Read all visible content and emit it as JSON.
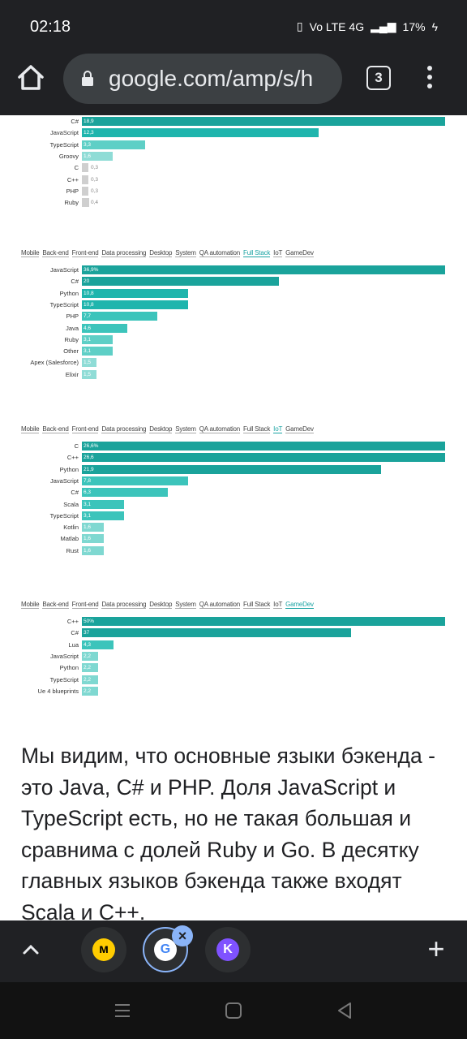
{
  "status": {
    "time": "02:18",
    "network": "Vo LTE 4G",
    "battery": "17%"
  },
  "browser": {
    "url": "google.com/amp/s/h",
    "tab_count": "3"
  },
  "charts": [
    {
      "filters": [],
      "active": "",
      "rows": [
        {
          "label": "C#",
          "value": "18,9",
          "v": 18.9,
          "color": "#1aa39b"
        },
        {
          "label": "JavaScript",
          "value": "12,3",
          "v": 12.3,
          "color": "#1fb5ad"
        },
        {
          "label": "TypeScript",
          "value": "3,3",
          "v": 3.3,
          "color": "#5ecfc6"
        },
        {
          "label": "Groovy",
          "value": "1,6",
          "v": 1.6,
          "color": "#8fdcd6"
        },
        {
          "label": "C",
          "value": "0,3",
          "v": 0.3,
          "color": "#cfcfcf"
        },
        {
          "label": "C++",
          "value": "0,3",
          "v": 0.3,
          "color": "#cfcfcf"
        },
        {
          "label": "PHP",
          "value": "0,3",
          "v": 0.3,
          "color": "#cfcfcf"
        },
        {
          "label": "Ruby",
          "value": "0,4",
          "v": 0.4,
          "color": "#cfcfcf"
        }
      ]
    },
    {
      "filters": [
        "Mobile",
        "Back-end",
        "Front-end",
        "Data processing",
        "Desktop",
        "System",
        "QA automation",
        "Full Stack",
        "IoT",
        "GameDev"
      ],
      "active": "Full Stack",
      "rows": [
        {
          "label": "JavaScript",
          "value": "36,9%",
          "v": 36.9,
          "color": "#1aa39b"
        },
        {
          "label": "C#",
          "value": "20",
          "v": 20,
          "color": "#1aa39b"
        },
        {
          "label": "Python",
          "value": "10,8",
          "v": 10.8,
          "color": "#1fb5ad"
        },
        {
          "label": "TypeScript",
          "value": "10,8",
          "v": 10.8,
          "color": "#1fb5ad"
        },
        {
          "label": "PHP",
          "value": "7,7",
          "v": 7.7,
          "color": "#3cc4bb"
        },
        {
          "label": "Java",
          "value": "4,6",
          "v": 4.6,
          "color": "#3cc4bb"
        },
        {
          "label": "Ruby",
          "value": "3,1",
          "v": 3.1,
          "color": "#5ecfc6"
        },
        {
          "label": "Other",
          "value": "3,1",
          "v": 3.1,
          "color": "#5ecfc6"
        },
        {
          "label": "Apex (Salesforce)",
          "value": "1,5",
          "v": 1.5,
          "color": "#8fdcd6"
        },
        {
          "label": "Elixir",
          "value": "1,5",
          "v": 1.5,
          "color": "#8fdcd6"
        }
      ]
    },
    {
      "filters": [
        "Mobile",
        "Back-end",
        "Front-end",
        "Data processing",
        "Desktop",
        "System",
        "QA automation",
        "Full Stack",
        "IoT",
        "GameDev"
      ],
      "active": "IoT",
      "rows": [
        {
          "label": "C",
          "value": "26,6%",
          "v": 26.6,
          "color": "#1aa39b"
        },
        {
          "label": "C++",
          "value": "26,6",
          "v": 26.6,
          "color": "#1aa39b"
        },
        {
          "label": "Python",
          "value": "21,9",
          "v": 21.9,
          "color": "#1aa39b"
        },
        {
          "label": "JavaScript",
          "value": "7,8",
          "v": 7.8,
          "color": "#3cc4bb"
        },
        {
          "label": "C#",
          "value": "6,3",
          "v": 6.3,
          "color": "#3cc4bb"
        },
        {
          "label": "Scala",
          "value": "3,1",
          "v": 3.1,
          "color": "#3cc4bb"
        },
        {
          "label": "TypeScript",
          "value": "3,1",
          "v": 3.1,
          "color": "#3cc4bb"
        },
        {
          "label": "Kotlin",
          "value": "1,6",
          "v": 1.6,
          "color": "#7fd8d1"
        },
        {
          "label": "Matlab",
          "value": "1,6",
          "v": 1.6,
          "color": "#7fd8d1"
        },
        {
          "label": "Rust",
          "value": "1,6",
          "v": 1.6,
          "color": "#7fd8d1"
        }
      ]
    },
    {
      "filters": [
        "Mobile",
        "Back-end",
        "Front-end",
        "Data processing",
        "Desktop",
        "System",
        "QA automation",
        "Full Stack",
        "IoT",
        "GameDev"
      ],
      "active": "GameDev",
      "rows": [
        {
          "label": "C++",
          "value": "50%",
          "v": 50,
          "color": "#1aa39b"
        },
        {
          "label": "C#",
          "value": "37",
          "v": 37,
          "color": "#1aa39b"
        },
        {
          "label": "Lua",
          "value": "4,3",
          "v": 4.3,
          "color": "#3cc4bb"
        },
        {
          "label": "JavaScript",
          "value": "2,2",
          "v": 2.2,
          "color": "#7fd8d1"
        },
        {
          "label": "Python",
          "value": "2,2",
          "v": 2.2,
          "color": "#7fd8d1"
        },
        {
          "label": "TypeScript",
          "value": "2,2",
          "v": 2.2,
          "color": "#7fd8d1"
        },
        {
          "label": "Ue 4 blueprints",
          "value": "2,2",
          "v": 2.2,
          "color": "#7fd8d1"
        }
      ]
    }
  ],
  "article": {
    "paragraph": "Мы видим, что основные языки бэкенда - это Java, C# и PHP. Доля JavaScript и TypeScript есть, но не такая большая и сравнима с долей Ruby и Go. В десятку главных языков бэкенда также входят Scala и C++."
  },
  "tab_group": {
    "tabs": [
      {
        "name": "yandex-market",
        "glyph": "м",
        "color": "#ffcc00",
        "fg": "#000"
      },
      {
        "name": "google",
        "glyph": "G",
        "color": "#ffffff",
        "fg": "#4285f4"
      },
      {
        "name": "kotlin",
        "glyph": "K",
        "color": "#7f52ff",
        "fg": "#fff"
      }
    ]
  }
}
